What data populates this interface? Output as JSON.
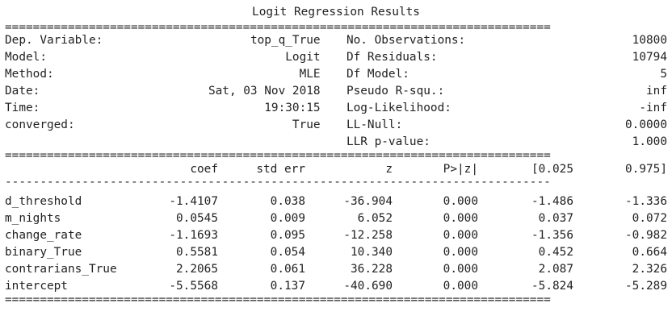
{
  "title": "Logit Regression Results",
  "rule_eq": "==============================================================================",
  "rule_dash": "------------------------------------------------------------------------------",
  "info_rows": [
    {
      "l_label": "Dep. Variable:",
      "l_value": "top_q_True",
      "r_label": "No. Observations:",
      "r_value": "10800"
    },
    {
      "l_label": "Model:",
      "l_value": "Logit",
      "r_label": "Df Residuals:",
      "r_value": "10794"
    },
    {
      "l_label": "Method:",
      "l_value": "MLE",
      "r_label": "Df Model:",
      "r_value": "5"
    },
    {
      "l_label": "Date:",
      "l_value": "Sat, 03 Nov 2018",
      "r_label": "Pseudo R-squ.:",
      "r_value": "inf"
    },
    {
      "l_label": "Time:",
      "l_value": "19:30:15",
      "r_label": "Log-Likelihood:",
      "r_value": "-inf"
    },
    {
      "l_label": "converged:",
      "l_value": "True",
      "r_label": "LL-Null:",
      "r_value": "0.0000"
    },
    {
      "l_label": "",
      "l_value": "",
      "r_label": "LLR p-value:",
      "r_value": "1.000"
    }
  ],
  "param_headers": [
    "",
    "coef",
    "std err",
    "z",
    "P>|z|",
    "[0.025",
    "0.975]"
  ],
  "param_rows": [
    [
      "d_threshold",
      "-1.4107",
      "0.038",
      "-36.904",
      "0.000",
      "-1.486",
      "-1.336"
    ],
    [
      "m_nights",
      "0.0545",
      "0.009",
      "6.052",
      "0.000",
      "0.037",
      "0.072"
    ],
    [
      "change_rate",
      "-1.1693",
      "0.095",
      "-12.258",
      "0.000",
      "-1.356",
      "-0.982"
    ],
    [
      "binary_True",
      "0.5581",
      "0.054",
      "10.340",
      "0.000",
      "0.452",
      "0.664"
    ],
    [
      "contrarians_True",
      "2.2065",
      "0.061",
      "36.228",
      "0.000",
      "2.087",
      "2.326"
    ],
    [
      "intercept",
      "-5.5568",
      "0.137",
      "-40.690",
      "0.000",
      "-5.824",
      "-5.289"
    ]
  ]
}
